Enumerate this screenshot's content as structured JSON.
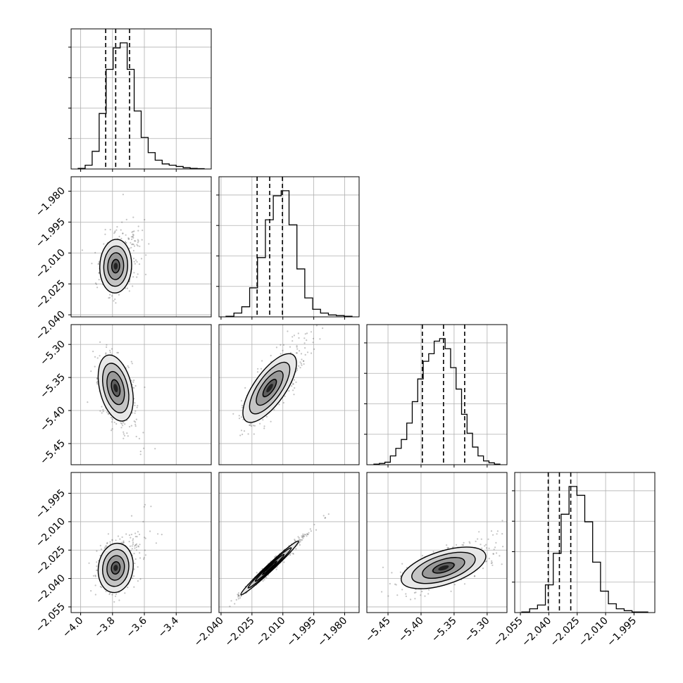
{
  "chart_data": {
    "type": "corner",
    "n_params": 4,
    "grid": "on",
    "quantiles": [
      0.16,
      0.5,
      0.84
    ],
    "params": [
      {
        "range": [
          -4.06,
          -3.18
        ],
        "ticks": [
          -4.0,
          -3.8,
          -3.6,
          -3.4
        ],
        "tick_labels": [
          "−4.0",
          "−3.8",
          "−3.6",
          "−3.4"
        ],
        "quantile_values": [
          -3.843,
          -3.78,
          -3.693
        ]
      },
      {
        "range": [
          -2.041,
          -1.973
        ],
        "ticks": [
          -2.04,
          -2.025,
          -2.01,
          -1.995,
          -1.98
        ],
        "tick_labels": [
          "−2.040",
          "−2.025",
          "−2.010",
          "−1.995",
          "−1.980"
        ],
        "quantile_values": [
          -2.0225,
          -2.0164,
          -2.0102
        ]
      },
      {
        "range": [
          -5.482,
          -5.27
        ],
        "ticks": [
          -5.45,
          -5.4,
          -5.35,
          -5.3
        ],
        "tick_labels": [
          "−5.45",
          "−5.40",
          "−5.35",
          "−5.30"
        ],
        "quantile_values": [
          -5.398,
          -5.366,
          -5.334
        ]
      },
      {
        "range": [
          -2.058,
          -1.984
        ],
        "ticks": [
          -2.055,
          -2.04,
          -2.025,
          -2.01,
          -1.995
        ],
        "tick_labels": [
          "−2.055",
          "−2.040",
          "−2.025",
          "−2.010",
          "−1.995"
        ],
        "quantile_values": [
          -2.0403,
          -2.0344,
          -2.0284
        ]
      }
    ],
    "histograms": [
      [
        0.5,
        3,
        14,
        44,
        79,
        96,
        100,
        79,
        46,
        25,
        13,
        7,
        4,
        3,
        2,
        1,
        0.5,
        0.3
      ],
      [
        0.5,
        3,
        8,
        23,
        47,
        77,
        96,
        100,
        73,
        38,
        15,
        6,
        3,
        1.5,
        1,
        0.5
      ],
      [
        0.5,
        1,
        2,
        7,
        13,
        20,
        33,
        50,
        68,
        82,
        88,
        98,
        100,
        92,
        77,
        60,
        40,
        25,
        14,
        7,
        3,
        1.5,
        0.5
      ],
      [
        0.5,
        3,
        6,
        22,
        47,
        78,
        100,
        93,
        72,
        40,
        17,
        7,
        3,
        1.5,
        0.5,
        0.5
      ]
    ],
    "pairs": [
      {
        "row": 1,
        "col": 0,
        "center": [
          -3.78,
          -2.0164
        ],
        "sd": [
          0.05,
          0.0065
        ],
        "rho": 0.05
      },
      {
        "row": 2,
        "col": 0,
        "center": [
          -3.78,
          -5.366
        ],
        "sd": [
          0.055,
          0.025
        ],
        "rho": -0.35
      },
      {
        "row": 2,
        "col": 1,
        "center": [
          -2.0164,
          -5.366
        ],
        "sd": [
          0.0065,
          0.026
        ],
        "rho": 0.72
      },
      {
        "row": 3,
        "col": 0,
        "center": [
          -3.78,
          -2.0344
        ],
        "sd": [
          0.055,
          0.0065
        ],
        "rho": 0.1
      },
      {
        "row": 3,
        "col": 1,
        "center": [
          -2.0164,
          -2.0344
        ],
        "sd": [
          0.007,
          0.0071
        ],
        "rho": 0.985
      },
      {
        "row": 3,
        "col": 2,
        "center": [
          -5.366,
          -2.0344
        ],
        "sd": [
          0.032,
          0.0055
        ],
        "rho": 0.55
      }
    ]
  }
}
